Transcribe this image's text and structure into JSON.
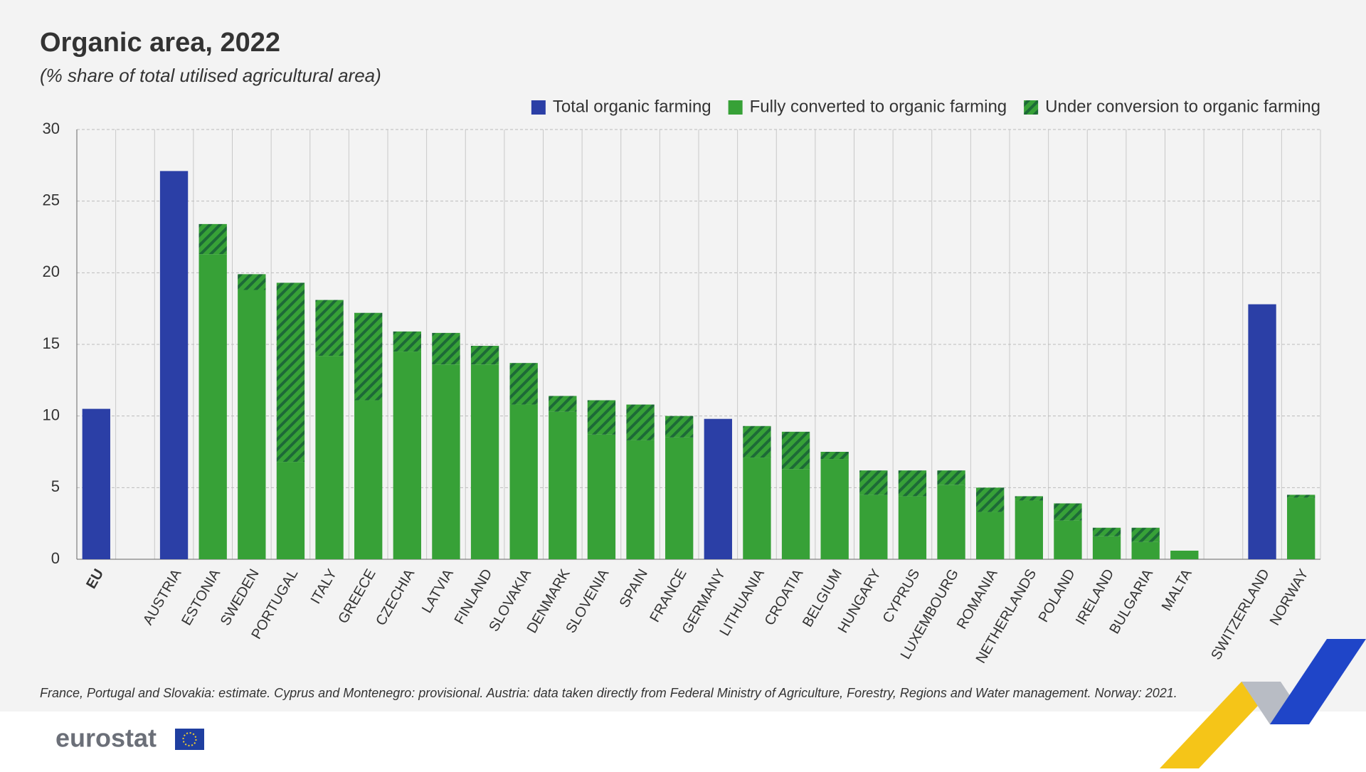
{
  "chart_data": {
    "type": "bar",
    "stacked": true,
    "title": "Organic area, 2022",
    "subtitle": "(% share of total utilised agricultural area)",
    "categories": [
      "EU",
      null,
      "AUSTRIA",
      "ESTONIA",
      "SWEDEN",
      "PORTUGAL",
      "ITALY",
      "GREECE",
      "CZECHIA",
      "LATVIA",
      "FINLAND",
      "SLOVAKIA",
      "DENMARK",
      "SLOVENIA",
      "SPAIN",
      "FRANCE",
      "GERMANY",
      "LITHUANIA",
      "CROATIA",
      "BELGIUM",
      "HUNGARY",
      "CYPRUS",
      "LUXEMBOURG",
      "ROMANIA",
      "NETHERLANDS",
      "POLAND",
      "IRELAND",
      "BULGARIA",
      "MALTA",
      null,
      "SWITZERLAND",
      "NORWAY"
    ],
    "series": [
      {
        "name": "Total organic farming",
        "color": "#2b3fa6",
        "values": [
          10.5,
          null,
          27.1,
          null,
          null,
          null,
          null,
          null,
          null,
          null,
          null,
          null,
          null,
          null,
          null,
          null,
          9.8,
          null,
          null,
          null,
          null,
          null,
          null,
          null,
          null,
          null,
          null,
          null,
          null,
          null,
          17.8,
          null
        ]
      },
      {
        "name": "Fully converted to organic farming",
        "color": "#37a137",
        "values": [
          null,
          null,
          null,
          21.3,
          18.8,
          6.8,
          14.2,
          11.1,
          14.5,
          13.6,
          13.6,
          10.8,
          10.3,
          8.7,
          8.3,
          8.5,
          null,
          7.1,
          6.3,
          7.0,
          4.5,
          4.4,
          5.2,
          3.3,
          4.1,
          2.7,
          1.6,
          1.2,
          0.6,
          null,
          null,
          4.3
        ]
      },
      {
        "name": "Under conversion to organic farming",
        "color": "#1d6a37",
        "hatch": true,
        "values": [
          null,
          null,
          null,
          2.1,
          1.1,
          12.5,
          3.9,
          6.1,
          1.4,
          2.2,
          1.3,
          2.9,
          1.1,
          2.4,
          2.5,
          1.5,
          null,
          2.2,
          2.6,
          0.5,
          1.7,
          1.8,
          1.0,
          1.7,
          0.3,
          1.2,
          0.6,
          1.0,
          0,
          null,
          null,
          0.2
        ]
      }
    ],
    "ylim": [
      0,
      30
    ],
    "yticks": [
      0,
      5,
      10,
      15,
      20,
      25,
      30
    ],
    "grid": true,
    "footnote": "France, Portugal and Slovakia: estimate. Cyprus and Montenegro: provisional. Austria: data taken directly from Federal Ministry of Agriculture, Forestry, Regions and Water management. Norway: 2021.",
    "logo": "eurostat"
  }
}
